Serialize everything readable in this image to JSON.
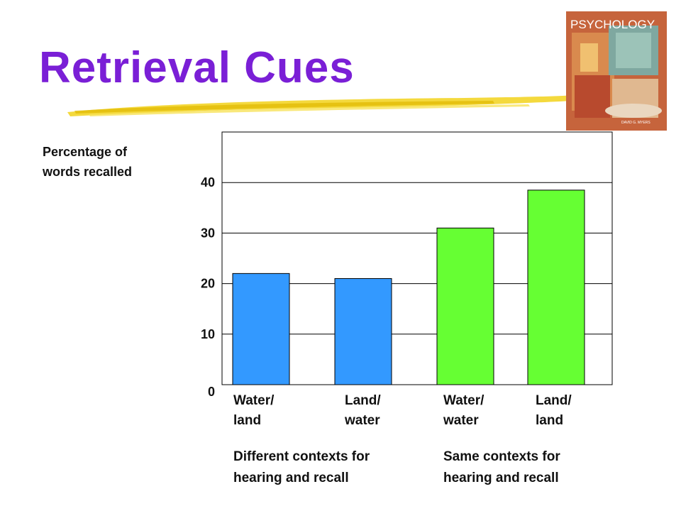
{
  "slide": {
    "title": "Retrieval Cues",
    "book_cover_text": "PSYCHOLOGY",
    "book_author_text": "DAVID G. MYERS"
  },
  "chart_data": {
    "type": "bar",
    "title": "",
    "xlabel": "",
    "ylabel": "Percentage of\nwords recalled",
    "ylim": [
      0,
      50
    ],
    "yticks": [
      0,
      10,
      20,
      30,
      40
    ],
    "grid": true,
    "categories": [
      "Water/\nland",
      "Land/\nwater",
      "Water/\nwater",
      "Land/\nland"
    ],
    "values": [
      22,
      21,
      31,
      38.5
    ],
    "colors": [
      "#3399ff",
      "#3399ff",
      "#66ff33",
      "#66ff33"
    ],
    "groups": [
      {
        "label": "Different contexts for\nhearing and recall",
        "categories": [
          "Water/\nland",
          "Land/\nwater"
        ]
      },
      {
        "label": "Same contexts for\nhearing and recall",
        "categories": [
          "Water/\nwater",
          "Land/\nland"
        ]
      }
    ]
  }
}
